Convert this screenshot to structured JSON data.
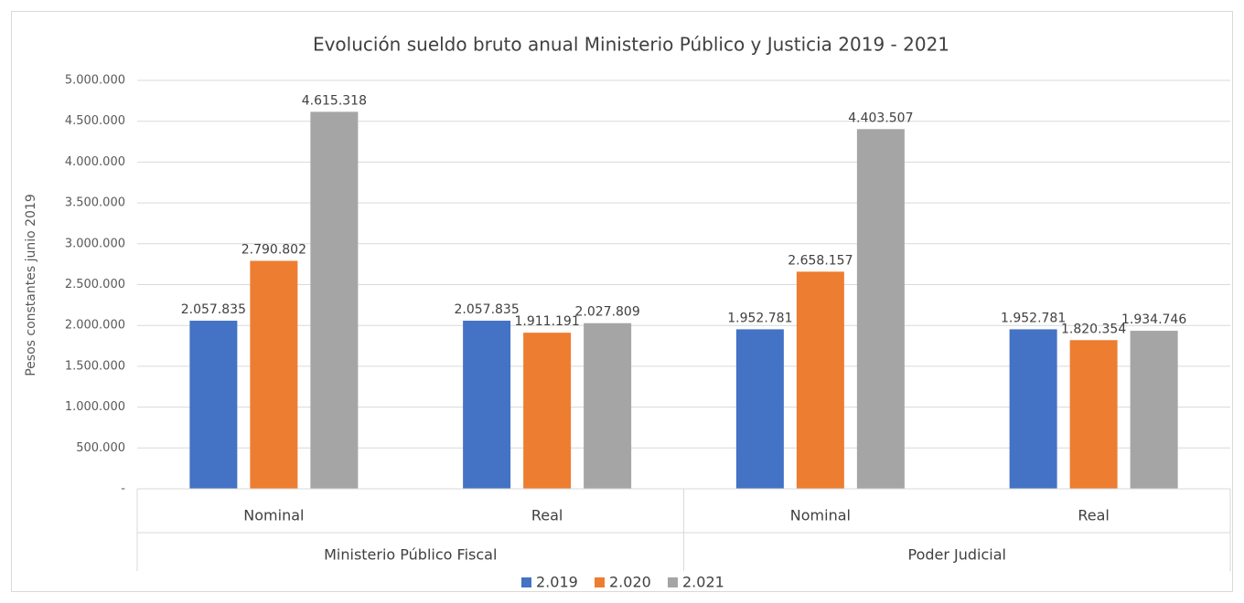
{
  "chart_data": {
    "type": "bar",
    "title": "Evolución sueldo bruto anual  Ministerio Público y Justicia 2019 - 2021",
    "ylabel": "Pesos constantes junio 2019",
    "groups": [
      {
        "name": "Ministerio Público Fiscal",
        "categories": [
          "Nominal",
          "Real"
        ]
      },
      {
        "name": "Poder Judicial",
        "categories": [
          "Nominal",
          "Real"
        ]
      }
    ],
    "series": [
      {
        "name": "2.019",
        "color": "#4472c4",
        "values": [
          2057835,
          2057835,
          1952781,
          1952781
        ],
        "value_labels": [
          "2.057.835",
          "2.057.835",
          "1.952.781",
          "1.952.781"
        ]
      },
      {
        "name": "2.020",
        "color": "#ed7d31",
        "values": [
          2790802,
          1911191,
          2658157,
          1820354
        ],
        "value_labels": [
          "2.790.802",
          "1.911.191",
          "2.658.157",
          "1.820.354"
        ]
      },
      {
        "name": "2.021",
        "color": "#a5a5a5",
        "values": [
          4615318,
          2027809,
          4403507,
          1934746
        ],
        "value_labels": [
          "4.615.318",
          "2.027.809",
          "4.403.507",
          "1.934.746"
        ]
      }
    ],
    "ylim": [
      0,
      5000000
    ],
    "yticks": [
      {
        "value": 0,
        "label": "-"
      },
      {
        "value": 500000,
        "label": "500.000"
      },
      {
        "value": 1000000,
        "label": "1.000.000"
      },
      {
        "value": 1500000,
        "label": "1.500.000"
      },
      {
        "value": 2000000,
        "label": "2.000.000"
      },
      {
        "value": 2500000,
        "label": "2.500.000"
      },
      {
        "value": 3000000,
        "label": "3.000.000"
      },
      {
        "value": 3500000,
        "label": "3.500.000"
      },
      {
        "value": 4000000,
        "label": "4.000.000"
      },
      {
        "value": 4500000,
        "label": "4.500.000"
      },
      {
        "value": 5000000,
        "label": "5.000.000"
      }
    ],
    "grid": true,
    "legend": "bottom"
  }
}
